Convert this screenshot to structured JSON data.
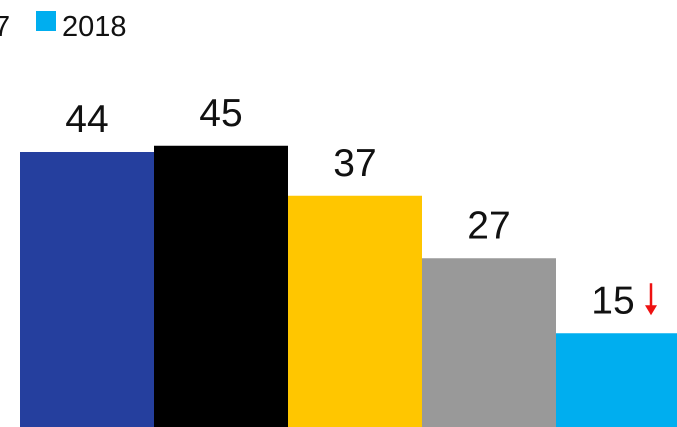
{
  "chart_data": {
    "type": "bar",
    "series": [
      {
        "name": "",
        "value": 44,
        "color": "#253F9E"
      },
      {
        "name": "",
        "value": 45,
        "color": "#000000"
      },
      {
        "name": "",
        "value": 37,
        "color": "#FFC600"
      },
      {
        "name": "",
        "value": 27,
        "color": "#999999"
      },
      {
        "name": "2018",
        "value": 15,
        "color": "#00AEEF",
        "trend": "down"
      }
    ],
    "legend": {
      "placement": "top-left",
      "visible_entries": [
        {
          "label": "7",
          "color": "",
          "clipped": true
        },
        {
          "label": "2018",
          "color": "#00AEEF"
        }
      ]
    },
    "trend_arrow_color": "#EE1111",
    "ylim": [
      0,
      50
    ]
  }
}
